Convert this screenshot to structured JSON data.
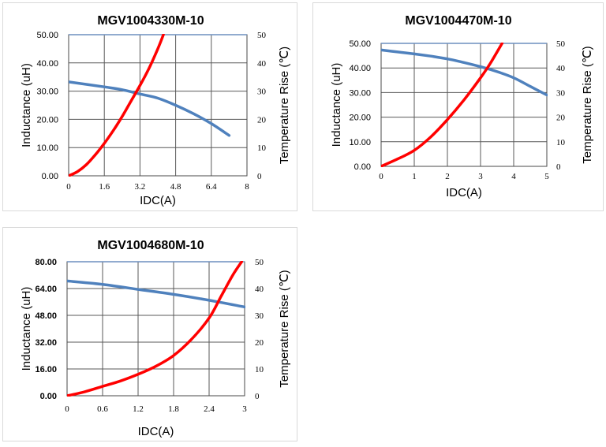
{
  "chart_data": [
    {
      "type": "line",
      "title": "MGV1004330M-10",
      "xlabel": "IDC(A)",
      "ylabel": "Inductance (uH)",
      "y2label": "Temperature Rise (℃)",
      "xlim": [
        0,
        8
      ],
      "xticks": [
        "0",
        "1.6",
        "3.2",
        "4.8",
        "6.4",
        "8"
      ],
      "ylim": [
        0,
        50
      ],
      "yticks": [
        "0.00",
        "10.00",
        "20.00",
        "30.00",
        "40.00",
        "50.00"
      ],
      "y_tick_bold": false,
      "y2lim": [
        0,
        50
      ],
      "y2ticks": [
        "0",
        "10",
        "20",
        "30",
        "40",
        "50"
      ],
      "grid": true,
      "series": [
        {
          "name": "Inductance",
          "axis": "left",
          "color": "#4f81bd",
          "x": [
            0,
            1.6,
            2.4,
            3.2,
            4.0,
            4.8,
            5.6,
            6.4,
            7.2
          ],
          "y": [
            33.3,
            31.5,
            30.5,
            29.0,
            27.5,
            25.0,
            22.0,
            18.5,
            14.3
          ]
        },
        {
          "name": "Temperature Rise",
          "axis": "right",
          "color": "#ff0000",
          "x": [
            0,
            0.4,
            0.8,
            1.2,
            1.6,
            2.0,
            2.4,
            2.8,
            3.2,
            3.6,
            4.0,
            4.25
          ],
          "y": [
            0,
            1.5,
            4,
            7.5,
            11.5,
            16,
            21,
            26.5,
            32,
            38,
            45,
            50
          ]
        }
      ]
    },
    {
      "type": "line",
      "title": "MGV1004470M-10",
      "xlabel": "IDC(A)",
      "ylabel": "Inductance (uH)",
      "y2label": "Temperature Rise (℃)",
      "xlim": [
        0,
        5
      ],
      "xticks": [
        "0",
        "1",
        "2",
        "3",
        "4",
        "5"
      ],
      "ylim": [
        0,
        50
      ],
      "yticks": [
        "0.00",
        "10.00",
        "20.00",
        "30.00",
        "40.00",
        "50.00"
      ],
      "y_tick_bold": false,
      "y2lim": [
        0,
        50
      ],
      "y2ticks": [
        "0",
        "10",
        "20",
        "30",
        "40",
        "50"
      ],
      "grid": true,
      "series": [
        {
          "name": "Inductance",
          "axis": "left",
          "color": "#4f81bd",
          "x": [
            0,
            0.5,
            1,
            1.5,
            2,
            2.5,
            3,
            3.5,
            4,
            4.5,
            5
          ],
          "y": [
            47.3,
            46.5,
            45.7,
            44.8,
            43.7,
            42.2,
            40.5,
            38.5,
            36.0,
            32.5,
            29.0
          ]
        },
        {
          "name": "Temperature Rise",
          "axis": "right",
          "color": "#ff0000",
          "x": [
            0,
            0.5,
            1,
            1.5,
            2,
            2.5,
            3,
            3.3,
            3.65
          ],
          "y": [
            0,
            3,
            6.5,
            12,
            19,
            27,
            36,
            42,
            50
          ]
        }
      ]
    },
    {
      "type": "line",
      "title": "MGV1004680M-10",
      "xlabel": "IDC(A)",
      "ylabel": "Inductance (uH)",
      "y2label": "Temperature Rise (℃)",
      "xlim": [
        0,
        3
      ],
      "xticks": [
        "0",
        "0.6",
        "1.2",
        "1.8",
        "2.4",
        "3"
      ],
      "ylim": [
        0,
        80
      ],
      "yticks": [
        "0.00",
        "16.00",
        "32.00",
        "48.00",
        "64.00",
        "80.00"
      ],
      "y_tick_bold": true,
      "y2lim": [
        0,
        50
      ],
      "y2ticks": [
        "0",
        "10",
        "20",
        "30",
        "40",
        "50"
      ],
      "grid": true,
      "series": [
        {
          "name": "Inductance",
          "axis": "left",
          "color": "#4f81bd",
          "x": [
            0,
            0.6,
            1.2,
            1.8,
            2.4,
            3.0
          ],
          "y": [
            68.5,
            66.5,
            63.5,
            60.5,
            57.0,
            53.0
          ]
        },
        {
          "name": "Temperature Rise",
          "axis": "right",
          "color": "#ff0000",
          "x": [
            0,
            0.3,
            0.6,
            0.9,
            1.2,
            1.5,
            1.8,
            2.1,
            2.4,
            2.6,
            2.8,
            2.95
          ],
          "y": [
            0,
            1.5,
            3.5,
            5.5,
            8,
            11,
            15,
            21,
            29,
            37,
            45,
            50
          ]
        }
      ]
    }
  ]
}
